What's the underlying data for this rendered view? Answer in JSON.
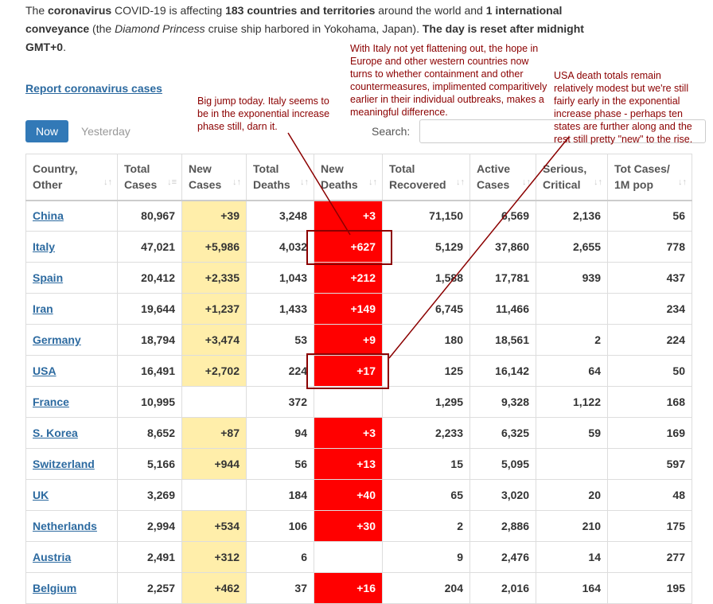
{
  "intro": {
    "p1": "The ",
    "b1": "coronavirus",
    "p2": " COVID-19 is affecting ",
    "b2": "183 countries and territories",
    "p3": " around the world and ",
    "b3": "1 international conveyance",
    "p4": " (the ",
    "i1": "Diamond Princess",
    "p5": " cruise ship harbored in Yokohama, Japan). ",
    "b4": "The day is reset after midnight GMT+0",
    "p6": "."
  },
  "report_link": "Report coronavirus cases",
  "tabs": {
    "now": "Now",
    "yesterday": "Yesterday"
  },
  "search": {
    "label": "Search:",
    "value": ""
  },
  "columns": [
    {
      "l1": "Country,",
      "l2": "Other"
    },
    {
      "l1": "Total",
      "l2": "Cases"
    },
    {
      "l1": "New",
      "l2": "Cases"
    },
    {
      "l1": "Total",
      "l2": "Deaths"
    },
    {
      "l1": "New",
      "l2": "Deaths"
    },
    {
      "l1": "Total",
      "l2": "Recovered"
    },
    {
      "l1": "Active",
      "l2": "Cases"
    },
    {
      "l1": "Serious,",
      "l2": "Critical"
    },
    {
      "l1": "Tot Cases/",
      "l2": "1M pop"
    }
  ],
  "rows": [
    {
      "country": "China",
      "total_cases": "80,967",
      "new_cases": "+39",
      "total_deaths": "3,248",
      "new_deaths": "+3",
      "recovered": "71,150",
      "active": "6,569",
      "serious": "2,136",
      "per_1m": "56"
    },
    {
      "country": "Italy",
      "total_cases": "47,021",
      "new_cases": "+5,986",
      "total_deaths": "4,032",
      "new_deaths": "+627",
      "recovered": "5,129",
      "active": "37,860",
      "serious": "2,655",
      "per_1m": "778"
    },
    {
      "country": "Spain",
      "total_cases": "20,412",
      "new_cases": "+2,335",
      "total_deaths": "1,043",
      "new_deaths": "+212",
      "recovered": "1,588",
      "active": "17,781",
      "serious": "939",
      "per_1m": "437"
    },
    {
      "country": "Iran",
      "total_cases": "19,644",
      "new_cases": "+1,237",
      "total_deaths": "1,433",
      "new_deaths": "+149",
      "recovered": "6,745",
      "active": "11,466",
      "serious": "",
      "per_1m": "234"
    },
    {
      "country": "Germany",
      "total_cases": "18,794",
      "new_cases": "+3,474",
      "total_deaths": "53",
      "new_deaths": "+9",
      "recovered": "180",
      "active": "18,561",
      "serious": "2",
      "per_1m": "224"
    },
    {
      "country": "USA",
      "total_cases": "16,491",
      "new_cases": "+2,702",
      "total_deaths": "224",
      "new_deaths": "+17",
      "recovered": "125",
      "active": "16,142",
      "serious": "64",
      "per_1m": "50"
    },
    {
      "country": "France",
      "total_cases": "10,995",
      "new_cases": "",
      "total_deaths": "372",
      "new_deaths": "",
      "recovered": "1,295",
      "active": "9,328",
      "serious": "1,122",
      "per_1m": "168"
    },
    {
      "country": "S. Korea",
      "total_cases": "8,652",
      "new_cases": "+87",
      "total_deaths": "94",
      "new_deaths": "+3",
      "recovered": "2,233",
      "active": "6,325",
      "serious": "59",
      "per_1m": "169"
    },
    {
      "country": "Switzerland",
      "total_cases": "5,166",
      "new_cases": "+944",
      "total_deaths": "56",
      "new_deaths": "+13",
      "recovered": "15",
      "active": "5,095",
      "serious": "",
      "per_1m": "597"
    },
    {
      "country": "UK",
      "total_cases": "3,269",
      "new_cases": "",
      "total_deaths": "184",
      "new_deaths": "+40",
      "recovered": "65",
      "active": "3,020",
      "serious": "20",
      "per_1m": "48"
    },
    {
      "country": "Netherlands",
      "total_cases": "2,994",
      "new_cases": "+534",
      "total_deaths": "106",
      "new_deaths": "+30",
      "recovered": "2",
      "active": "2,886",
      "serious": "210",
      "per_1m": "175"
    },
    {
      "country": "Austria",
      "total_cases": "2,491",
      "new_cases": "+312",
      "total_deaths": "6",
      "new_deaths": "",
      "recovered": "9",
      "active": "2,476",
      "serious": "14",
      "per_1m": "277"
    },
    {
      "country": "Belgium",
      "total_cases": "2,257",
      "new_cases": "+462",
      "total_deaths": "37",
      "new_deaths": "+16",
      "recovered": "204",
      "active": "2,016",
      "serious": "164",
      "per_1m": "195"
    }
  ],
  "annotations": {
    "italy_note": "Big jump today.  Italy seems to be in the exponential increase phase still, darn it.",
    "europe_note": "With Italy not yet flattening out, the hope in Europe and other western countries now turns to whether containment and other countermeasures, implimented comparitively earlier in their individual outbreaks, makes a meaningful difference.",
    "usa_note": "USA death totals remain relatively modest but we're still fairly early in the exponential increase phase - perhaps ten states are further along and the rest still pretty \"new\" to the rise.",
    "color": "#8b0000"
  },
  "colors": {
    "new_cases_bg": "#ffeeaa",
    "new_deaths_bg": "#ff0000",
    "link": "#2c6aa0",
    "tab_active": "#3279b7"
  }
}
